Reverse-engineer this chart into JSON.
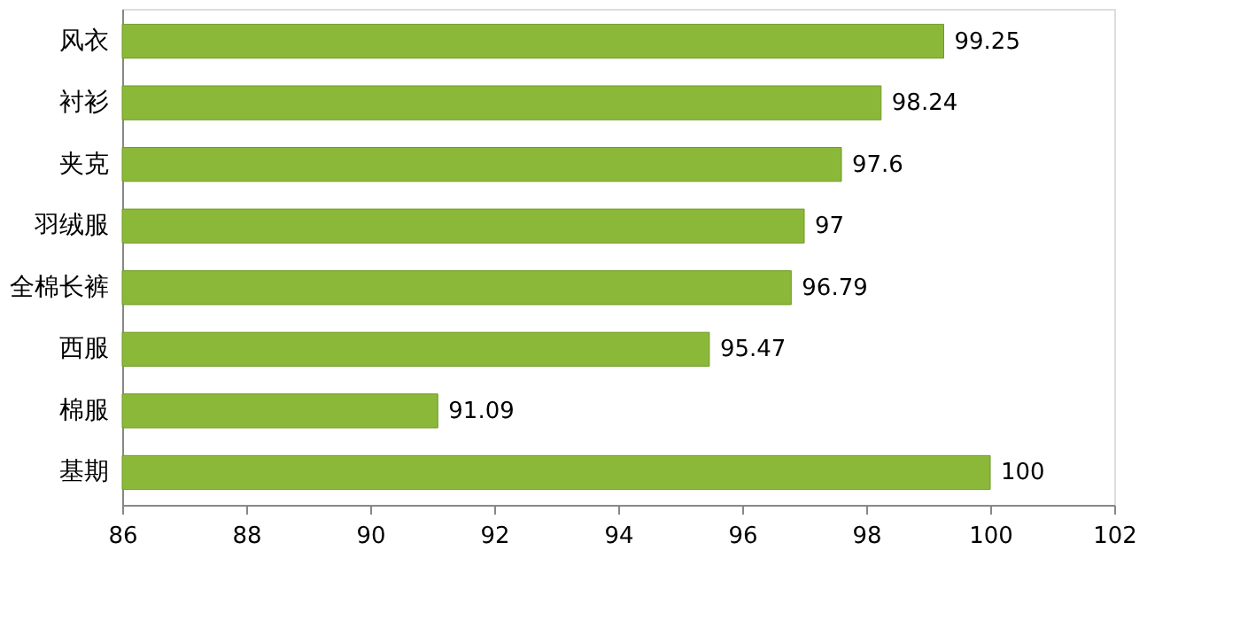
{
  "chart_data": {
    "type": "bar",
    "orientation": "horizontal",
    "categories": [
      "风衣",
      "衬衫",
      "夹克",
      "羽绒服",
      "全棉长裤",
      "西服",
      "棉服",
      "基期"
    ],
    "values": [
      99.25,
      98.24,
      97.6,
      97,
      96.79,
      95.47,
      91.09,
      100
    ],
    "value_labels": [
      "99.25",
      "98.24",
      "97.6",
      "97",
      "96.79",
      "95.47",
      "91.09",
      "100"
    ],
    "color": "#8cb83a",
    "xlim": [
      86,
      102
    ],
    "xticks": [
      86,
      88,
      90,
      92,
      94,
      96,
      98,
      100,
      102
    ],
    "grid": false
  }
}
